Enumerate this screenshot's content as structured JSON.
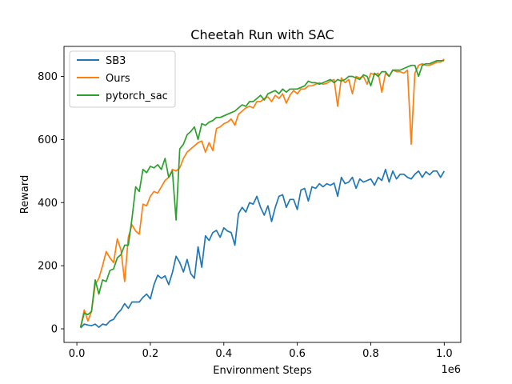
{
  "chart_data": {
    "type": "line",
    "title": "Cheetah Run with SAC",
    "xlabel": "Environment Steps",
    "ylabel": "Reward",
    "x_offset_label": "1e6",
    "xlim": [
      -0.035,
      1.045
    ],
    "ylim": [
      -43,
      895
    ],
    "x_ticks": [
      0.0,
      0.2,
      0.4,
      0.6,
      0.8,
      1.0
    ],
    "x_tick_labels": [
      "0.0",
      "0.2",
      "0.4",
      "0.6",
      "0.8",
      "1.0"
    ],
    "y_ticks": [
      0,
      200,
      400,
      600,
      800
    ],
    "y_tick_labels": [
      "0",
      "200",
      "400",
      "600",
      "800"
    ],
    "legend_position": "upper-left",
    "grid": false,
    "series": [
      {
        "name": "SB3",
        "color": "#1f77b4",
        "x": [
          0.01,
          0.02,
          0.03,
          0.04,
          0.05,
          0.06,
          0.07,
          0.08,
          0.09,
          0.1,
          0.11,
          0.12,
          0.13,
          0.14,
          0.15,
          0.16,
          0.17,
          0.18,
          0.19,
          0.2,
          0.21,
          0.22,
          0.23,
          0.24,
          0.25,
          0.26,
          0.27,
          0.28,
          0.29,
          0.3,
          0.31,
          0.32,
          0.33,
          0.34,
          0.35,
          0.36,
          0.37,
          0.38,
          0.39,
          0.4,
          0.41,
          0.42,
          0.43,
          0.44,
          0.45,
          0.46,
          0.47,
          0.48,
          0.49,
          0.5,
          0.51,
          0.52,
          0.53,
          0.54,
          0.55,
          0.56,
          0.57,
          0.58,
          0.59,
          0.6,
          0.61,
          0.62,
          0.63,
          0.64,
          0.65,
          0.66,
          0.67,
          0.68,
          0.69,
          0.7,
          0.71,
          0.72,
          0.73,
          0.74,
          0.75,
          0.76,
          0.77,
          0.78,
          0.79,
          0.8,
          0.81,
          0.82,
          0.83,
          0.84,
          0.85,
          0.86,
          0.87,
          0.88,
          0.89,
          0.9,
          0.91,
          0.92,
          0.93,
          0.94,
          0.95,
          0.96,
          0.97,
          0.98,
          0.99,
          1.0
        ],
        "values": [
          3,
          15,
          12,
          10,
          15,
          5,
          15,
          12,
          25,
          30,
          48,
          60,
          80,
          65,
          85,
          85,
          85,
          100,
          110,
          95,
          140,
          170,
          160,
          168,
          140,
          178,
          230,
          210,
          180,
          220,
          175,
          160,
          260,
          195,
          295,
          280,
          305,
          312,
          290,
          320,
          310,
          305,
          265,
          365,
          385,
          370,
          400,
          395,
          420,
          385,
          360,
          390,
          340,
          385,
          420,
          425,
          385,
          410,
          410,
          378,
          440,
          445,
          405,
          450,
          445,
          460,
          450,
          460,
          455,
          462,
          420,
          480,
          460,
          465,
          480,
          445,
          475,
          465,
          470,
          475,
          455,
          480,
          470,
          505,
          465,
          500,
          475,
          490,
          490,
          480,
          475,
          490,
          500,
          480,
          498,
          488,
          500,
          500,
          480,
          500
        ]
      },
      {
        "name": "Ours",
        "color": "#ff7f0e",
        "x": [
          0.01,
          0.02,
          0.03,
          0.04,
          0.05,
          0.06,
          0.07,
          0.08,
          0.09,
          0.1,
          0.11,
          0.12,
          0.13,
          0.14,
          0.15,
          0.16,
          0.17,
          0.18,
          0.19,
          0.2,
          0.21,
          0.22,
          0.23,
          0.24,
          0.25,
          0.26,
          0.27,
          0.28,
          0.29,
          0.3,
          0.31,
          0.32,
          0.33,
          0.34,
          0.35,
          0.36,
          0.37,
          0.38,
          0.39,
          0.4,
          0.41,
          0.42,
          0.43,
          0.44,
          0.45,
          0.46,
          0.47,
          0.48,
          0.49,
          0.5,
          0.51,
          0.52,
          0.53,
          0.54,
          0.55,
          0.56,
          0.57,
          0.58,
          0.59,
          0.6,
          0.61,
          0.62,
          0.63,
          0.64,
          0.65,
          0.66,
          0.67,
          0.68,
          0.69,
          0.7,
          0.71,
          0.72,
          0.73,
          0.74,
          0.75,
          0.76,
          0.77,
          0.78,
          0.79,
          0.8,
          0.81,
          0.82,
          0.83,
          0.84,
          0.85,
          0.86,
          0.87,
          0.88,
          0.89,
          0.9,
          0.91,
          0.92,
          0.93,
          0.94,
          0.95,
          0.96,
          0.97,
          0.98,
          0.99,
          1.0
        ],
        "values": [
          5,
          60,
          25,
          55,
          140,
          160,
          200,
          245,
          225,
          210,
          285,
          250,
          150,
          290,
          330,
          310,
          300,
          395,
          390,
          420,
          435,
          430,
          450,
          470,
          480,
          505,
          500,
          510,
          540,
          560,
          570,
          580,
          590,
          595,
          560,
          590,
          565,
          635,
          640,
          650,
          655,
          665,
          645,
          680,
          690,
          700,
          705,
          700,
          720,
          720,
          730,
          735,
          720,
          740,
          730,
          745,
          715,
          740,
          755,
          745,
          760,
          760,
          770,
          770,
          775,
          780,
          775,
          778,
          785,
          790,
          705,
          795,
          780,
          790,
          745,
          800,
          795,
          800,
          775,
          810,
          805,
          810,
          750,
          810,
          800,
          820,
          815,
          815,
          810,
          820,
          585,
          810,
          835,
          840,
          835,
          835,
          840,
          845,
          845,
          855
        ]
      },
      {
        "name": "pytorch_sac",
        "color": "#2ca02c",
        "x": [
          0.01,
          0.02,
          0.03,
          0.04,
          0.05,
          0.06,
          0.07,
          0.08,
          0.09,
          0.1,
          0.11,
          0.12,
          0.13,
          0.14,
          0.15,
          0.16,
          0.17,
          0.18,
          0.19,
          0.2,
          0.21,
          0.22,
          0.23,
          0.24,
          0.25,
          0.26,
          0.27,
          0.28,
          0.29,
          0.3,
          0.31,
          0.32,
          0.33,
          0.34,
          0.35,
          0.36,
          0.37,
          0.38,
          0.39,
          0.4,
          0.41,
          0.42,
          0.43,
          0.44,
          0.45,
          0.46,
          0.47,
          0.48,
          0.49,
          0.5,
          0.51,
          0.52,
          0.53,
          0.54,
          0.55,
          0.56,
          0.57,
          0.58,
          0.59,
          0.6,
          0.61,
          0.62,
          0.63,
          0.64,
          0.65,
          0.66,
          0.67,
          0.68,
          0.69,
          0.7,
          0.71,
          0.72,
          0.73,
          0.74,
          0.75,
          0.76,
          0.77,
          0.78,
          0.79,
          0.8,
          0.81,
          0.82,
          0.83,
          0.84,
          0.85,
          0.86,
          0.87,
          0.88,
          0.89,
          0.9,
          0.91,
          0.92,
          0.93,
          0.94,
          0.95,
          0.96,
          0.97,
          0.98,
          0.99,
          1.0
        ],
        "values": [
          5,
          50,
          45,
          55,
          155,
          110,
          155,
          150,
          185,
          190,
          225,
          235,
          265,
          265,
          350,
          450,
          435,
          505,
          495,
          515,
          510,
          520,
          505,
          540,
          480,
          500,
          345,
          570,
          585,
          615,
          625,
          640,
          600,
          650,
          645,
          655,
          660,
          670,
          670,
          675,
          680,
          685,
          690,
          700,
          710,
          705,
          720,
          720,
          730,
          740,
          725,
          745,
          750,
          755,
          745,
          760,
          750,
          760,
          760,
          760,
          765,
          770,
          785,
          780,
          780,
          775,
          780,
          785,
          790,
          780,
          790,
          785,
          790,
          800,
          800,
          795,
          790,
          805,
          800,
          770,
          810,
          800,
          815,
          815,
          800,
          820,
          820,
          820,
          825,
          830,
          835,
          835,
          800,
          835,
          840,
          840,
          845,
          850,
          850,
          850
        ]
      }
    ]
  }
}
